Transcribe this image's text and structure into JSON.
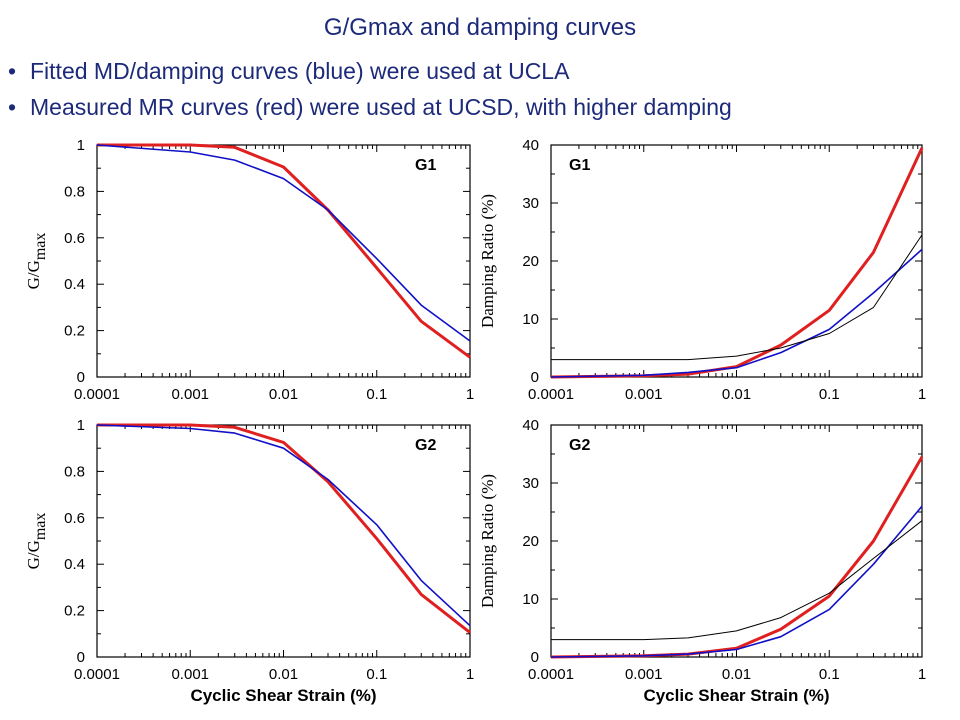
{
  "slide": {
    "title": "G/Gmax and damping curves",
    "bullets": [
      "Fitted MD/damping curves (blue) were used at UCLA",
      "Measured MR curves (red) were used at UCSD, with higher damping"
    ]
  },
  "colors": {
    "red": "#e02020",
    "blue": "#1010c8",
    "black": "#000000",
    "text": "#1d2a7a"
  },
  "x_tick_labels": [
    "0.0001",
    "0.001",
    "0.01",
    "0.1",
    "1"
  ],
  "xlabel": "Cyclic Shear Strain (%)",
  "chart_data": [
    {
      "type": "line",
      "panel_label": "G1",
      "xscale": "log",
      "xlim": [
        0.0001,
        1
      ],
      "ylim": [
        0,
        1
      ],
      "yticks": [
        "0",
        "0.2",
        "0.4",
        "0.6",
        "0.8",
        "1"
      ],
      "ylabel": "G/Gmax",
      "series": [
        {
          "color": "#e02020",
          "width": 3,
          "x": [
            0.0001,
            0.001,
            0.003,
            0.01,
            0.03,
            0.1,
            0.3,
            1
          ],
          "y": [
            1.0,
            1.0,
            0.99,
            0.905,
            0.72,
            0.47,
            0.24,
            0.085
          ]
        },
        {
          "color": "#1010c8",
          "width": 1.6,
          "x": [
            0.0001,
            0.001,
            0.003,
            0.01,
            0.03,
            0.1,
            0.3,
            1
          ],
          "y": [
            1.0,
            0.97,
            0.935,
            0.855,
            0.72,
            0.51,
            0.31,
            0.155
          ]
        }
      ]
    },
    {
      "type": "line",
      "panel_label": "G1",
      "xscale": "log",
      "xlim": [
        0.0001,
        1
      ],
      "ylim": [
        0,
        40
      ],
      "yticks": [
        "0",
        "10",
        "20",
        "30",
        "40"
      ],
      "ylabel": "Damping Ratio (%)",
      "series": [
        {
          "color": "#e02020",
          "width": 3,
          "x": [
            0.0001,
            0.001,
            0.003,
            0.01,
            0.03,
            0.1,
            0.3,
            1
          ],
          "y": [
            0,
            0.2,
            0.5,
            1.8,
            5.5,
            11.5,
            21.5,
            39.5
          ]
        },
        {
          "color": "#1010c8",
          "width": 1.6,
          "x": [
            0.0001,
            0.001,
            0.003,
            0.01,
            0.03,
            0.1,
            0.3,
            1
          ],
          "y": [
            0,
            0.3,
            0.8,
            1.6,
            4.2,
            8.2,
            14.5,
            22
          ]
        },
        {
          "color": "#000000",
          "width": 1,
          "x": [
            0.0001,
            0.001,
            0.003,
            0.01,
            0.03,
            0.1,
            0.3,
            1
          ],
          "y": [
            3,
            3,
            3,
            3.6,
            5,
            7.5,
            12,
            24.5
          ]
        }
      ]
    },
    {
      "type": "line",
      "panel_label": "G2",
      "xscale": "log",
      "xlim": [
        0.0001,
        1
      ],
      "ylim": [
        0,
        1
      ],
      "yticks": [
        "0",
        "0.2",
        "0.4",
        "0.6",
        "0.8",
        "1"
      ],
      "ylabel": "G/Gmax",
      "series": [
        {
          "color": "#e02020",
          "width": 3,
          "x": [
            0.0001,
            0.001,
            0.003,
            0.01,
            0.03,
            0.1,
            0.3,
            1
          ],
          "y": [
            1.0,
            1.0,
            0.99,
            0.925,
            0.755,
            0.51,
            0.27,
            0.105
          ]
        },
        {
          "color": "#1010c8",
          "width": 1.6,
          "x": [
            0.0001,
            0.001,
            0.003,
            0.01,
            0.03,
            0.1,
            0.3,
            1
          ],
          "y": [
            1.0,
            0.985,
            0.965,
            0.9,
            0.765,
            0.57,
            0.33,
            0.135
          ]
        }
      ]
    },
    {
      "type": "line",
      "panel_label": "G2",
      "xscale": "log",
      "xlim": [
        0.0001,
        1
      ],
      "ylim": [
        0,
        40
      ],
      "yticks": [
        "0",
        "10",
        "20",
        "30",
        "40"
      ],
      "ylabel": "Damping Ratio (%)",
      "series": [
        {
          "color": "#e02020",
          "width": 3,
          "x": [
            0.0001,
            0.001,
            0.003,
            0.01,
            0.03,
            0.1,
            0.3,
            1
          ],
          "y": [
            0,
            0.2,
            0.5,
            1.5,
            4.8,
            10.5,
            20,
            34.5
          ]
        },
        {
          "color": "#1010c8",
          "width": 1.6,
          "x": [
            0.0001,
            0.001,
            0.003,
            0.01,
            0.03,
            0.1,
            0.3,
            1
          ],
          "y": [
            0,
            0.2,
            0.5,
            1.3,
            3.5,
            8.2,
            16,
            26
          ]
        },
        {
          "color": "#000000",
          "width": 1,
          "x": [
            0.0001,
            0.001,
            0.003,
            0.01,
            0.03,
            0.1,
            0.3,
            1
          ],
          "y": [
            3,
            3,
            3.3,
            4.5,
            6.8,
            11,
            17,
            23.5
          ]
        }
      ]
    }
  ]
}
